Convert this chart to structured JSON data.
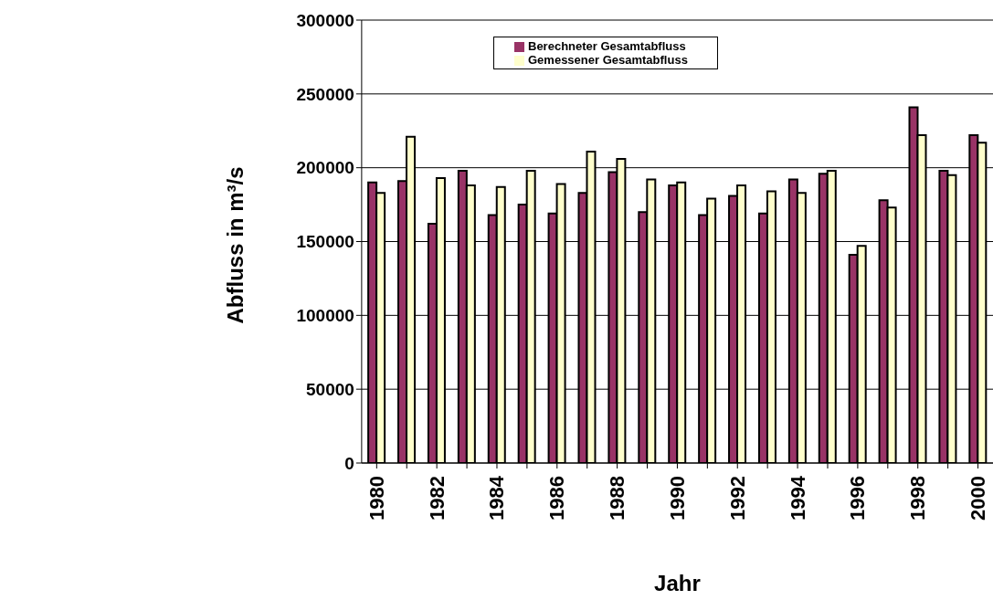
{
  "chart_data": {
    "type": "bar",
    "xlabel": "Jahr",
    "ylabel": "Abfluss in m³/s",
    "categories": [
      "1980",
      null,
      "1982",
      null,
      "1984",
      null,
      "1986",
      null,
      "1988",
      null,
      "1990",
      null,
      "1992",
      null,
      "1994",
      null,
      "1996",
      null,
      "1998",
      null,
      "2000"
    ],
    "series": [
      {
        "name": "Berechneter Gesamtabfluss",
        "color": "#993366",
        "values": [
          190000,
          191000,
          162000,
          198000,
          168000,
          175000,
          169000,
          183000,
          197000,
          170000,
          188000,
          168000,
          181000,
          169000,
          192000,
          196000,
          141000,
          178000,
          241000,
          198000,
          222000
        ]
      },
      {
        "name": "Gemessener Gesamtabfluss",
        "color": "#ffffcc",
        "values": [
          183000,
          221000,
          193000,
          188000,
          187000,
          198000,
          189000,
          211000,
          206000,
          192000,
          190000,
          179000,
          188000,
          184000,
          183000,
          198000,
          147000,
          173000,
          222000,
          195000,
          217000
        ]
      }
    ],
    "ylim": [
      0,
      300000
    ],
    "yticks": [
      0,
      50000,
      100000,
      150000,
      200000,
      250000,
      300000
    ],
    "grid": "y",
    "legend": "top"
  }
}
